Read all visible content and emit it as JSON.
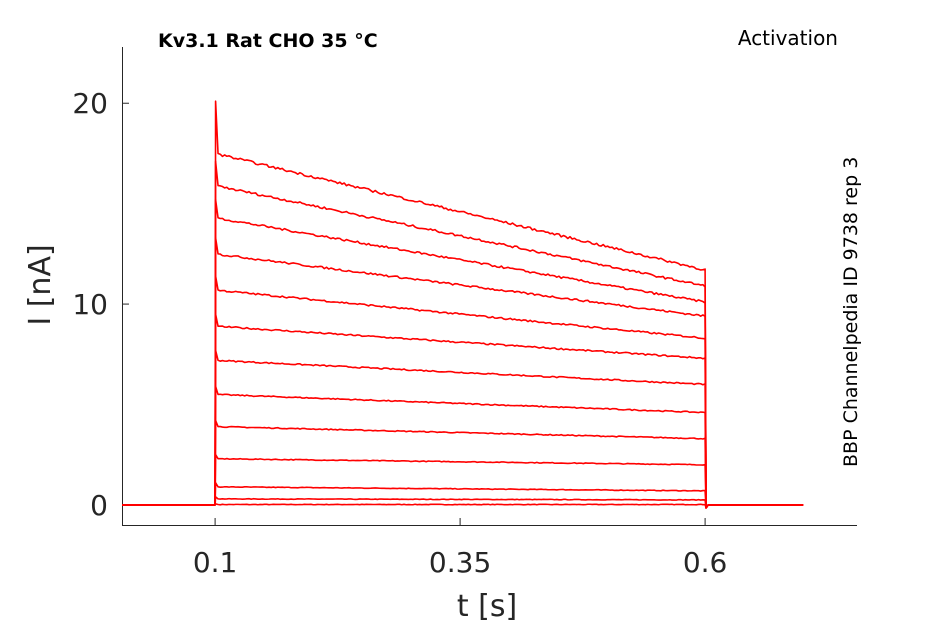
{
  "chart_data": {
    "type": "line",
    "title": "Kv3.1  Rat  CHO  35 °C",
    "protocol_label": "Activation",
    "source_label": "BBP Channelpedia ID 9738 rep 3",
    "xlabel": "t [s]",
    "ylabel": "I [nA]",
    "xlim": [
      0.005,
      0.755
    ],
    "ylim": [
      -1,
      22.8
    ],
    "xticks": [
      0.1,
      0.35,
      0.6
    ],
    "xtick_labels": [
      "0.1",
      "0.35",
      "0.6"
    ],
    "yticks": [
      0,
      10,
      20
    ],
    "ytick_labels": [
      "0",
      "10",
      "20"
    ],
    "grid": false,
    "line_color": "#ff0000",
    "time_range": [
      0.005,
      0.7
    ],
    "step_start": 0.1,
    "step_end": 0.6,
    "series": [
      {
        "plateau_start": 0.02,
        "plateau_end": 0.02,
        "peak": 0.05
      },
      {
        "plateau_start": 0.3,
        "plateau_end": 0.25,
        "peak": 0.4
      },
      {
        "plateau_start": 0.9,
        "plateau_end": 0.7,
        "peak": 1.1
      },
      {
        "plateau_start": 2.3,
        "plateau_end": 2.0,
        "peak": 2.5
      },
      {
        "plateau_start": 3.9,
        "plateau_end": 3.3,
        "peak": 4.2
      },
      {
        "plateau_start": 5.5,
        "plateau_end": 4.6,
        "peak": 5.9
      },
      {
        "plateau_start": 7.2,
        "plateau_end": 6.0,
        "peak": 7.7
      },
      {
        "plateau_start": 8.9,
        "plateau_end": 7.3,
        "peak": 9.5
      },
      {
        "plateau_start": 10.7,
        "plateau_end": 8.3,
        "peak": 11.4
      },
      {
        "plateau_start": 12.5,
        "plateau_end": 9.4,
        "peak": 13.3
      },
      {
        "plateau_start": 14.3,
        "plateau_end": 10.1,
        "peak": 15.2
      },
      {
        "plateau_start": 15.9,
        "plateau_end": 10.9,
        "peak": 17.1
      },
      {
        "plateau_start": 17.5,
        "plateau_end": 11.7,
        "peak": 20.1
      }
    ]
  }
}
